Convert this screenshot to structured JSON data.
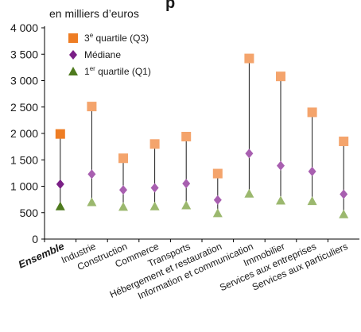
{
  "chart_data": {
    "type": "scatter",
    "title_fragment": "p",
    "unit_label": "en milliers d’euros",
    "ylim": [
      0,
      4000
    ],
    "yticks": [
      0,
      500,
      1000,
      1500,
      2000,
      2500,
      3000,
      3500,
      4000
    ],
    "ytick_labels": [
      "0",
      "500",
      "1 000",
      "1 500",
      "2 000",
      "2 500",
      "3 000",
      "3 500",
      "4 000"
    ],
    "grid": false,
    "legend_position": "top-left",
    "categories": [
      "Ensemble",
      "Industrie",
      "Construction",
      "Commerce",
      "Transports",
      "Hébergement et restauration",
      "Information et communication",
      "Immobilier",
      "Services aux entreprises",
      "Services aux particuliers"
    ],
    "highlight_category": "Ensemble",
    "series": [
      {
        "name": "3e quartile (Q3)",
        "legend_main": "3",
        "legend_sup": "e",
        "legend_rest": " quartile (Q3)",
        "marker": "square",
        "color": "#f4a46c",
        "highlight_color": "#ee7d24",
        "values": [
          1990,
          2510,
          1530,
          1800,
          1940,
          1240,
          3420,
          3080,
          2400,
          1850
        ]
      },
      {
        "name": "Médiane",
        "legend_main": "Médiane",
        "legend_sup": "",
        "legend_rest": "",
        "marker": "diamond",
        "color": "#a85fb0",
        "highlight_color": "#7a1f86",
        "values": [
          1040,
          1230,
          930,
          970,
          1050,
          740,
          1620,
          1390,
          1280,
          850
        ]
      },
      {
        "name": "1er quartile (Q1)",
        "legend_main": "1",
        "legend_sup": "er",
        "legend_rest": " quartile (Q1)",
        "marker": "triangle",
        "color": "#9bb86e",
        "highlight_color": "#4e7a1e",
        "values": [
          620,
          700,
          610,
          620,
          640,
          490,
          860,
          730,
          720,
          470
        ]
      }
    ]
  }
}
